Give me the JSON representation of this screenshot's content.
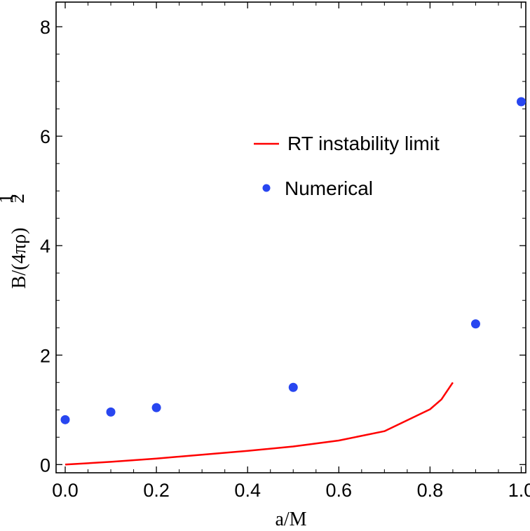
{
  "chart_data": {
    "type": "scatter",
    "title": "",
    "xlabel": "a/M",
    "ylabel": {
      "text": "B/(4πρ)",
      "exponent_numerator": "1",
      "exponent_denominator": "2"
    },
    "xlim": [
      -0.02,
      1.01
    ],
    "ylim": [
      -0.15,
      8.45
    ],
    "xticks": [
      "0.0",
      "0.2",
      "0.4",
      "0.6",
      "0.8",
      "1.0"
    ],
    "xtick_values": [
      0.0,
      0.2,
      0.4,
      0.6,
      0.8,
      1.0
    ],
    "yticks": [
      "0",
      "2",
      "4",
      "6",
      "8"
    ],
    "ytick_values": [
      0,
      2,
      4,
      6,
      8
    ],
    "grid": false,
    "legend_position": "upper-right",
    "series": [
      {
        "name": "RT instability limit",
        "kind": "line",
        "color": "#ff0000",
        "x": [
          0.0,
          0.1,
          0.2,
          0.3,
          0.4,
          0.5,
          0.6,
          0.7,
          0.8,
          0.825,
          0.85
        ],
        "y": [
          0.0,
          0.05,
          0.11,
          0.18,
          0.25,
          0.33,
          0.44,
          0.61,
          1.01,
          1.19,
          1.5
        ]
      },
      {
        "name": "Numerical",
        "kind": "scatter",
        "color": "#2846f0",
        "x": [
          0.0,
          0.1,
          0.2,
          0.5,
          0.9,
          1.0
        ],
        "y": [
          0.82,
          0.96,
          1.04,
          1.41,
          2.57,
          6.63
        ]
      }
    ]
  }
}
